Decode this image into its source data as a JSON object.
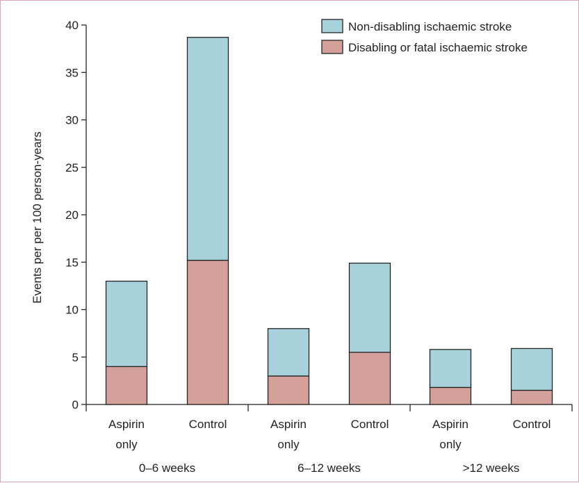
{
  "chart_data": {
    "type": "bar",
    "stacked": true,
    "ylabel": "Events per per 100 person-years",
    "ylim": [
      0,
      40
    ],
    "yticks": [
      0,
      5,
      10,
      15,
      20,
      25,
      30,
      35,
      40
    ],
    "grid": false,
    "legend_position": "top-right",
    "groups": [
      {
        "label": "0–6 weeks",
        "categories": [
          [
            "Aspirin",
            "only"
          ],
          [
            "Control"
          ]
        ]
      },
      {
        "label": "6–12 weeks",
        "categories": [
          [
            "Aspirin",
            "only"
          ],
          [
            "Control"
          ]
        ]
      },
      {
        "label": ">12 weeks",
        "categories": [
          [
            "Aspirin",
            "only"
          ],
          [
            "Control"
          ]
        ]
      }
    ],
    "series": [
      {
        "name": "Disabling or fatal ischaemic stroke",
        "color": "#d4a19a",
        "values": [
          4.0,
          15.2,
          3.0,
          5.5,
          1.8,
          1.5
        ]
      },
      {
        "name": "Non-disabling ischaemic stroke",
        "color": "#a8d2db",
        "values": [
          9.0,
          23.5,
          5.0,
          9.4,
          4.0,
          4.4
        ]
      }
    ],
    "legend_order": [
      1,
      0
    ]
  }
}
